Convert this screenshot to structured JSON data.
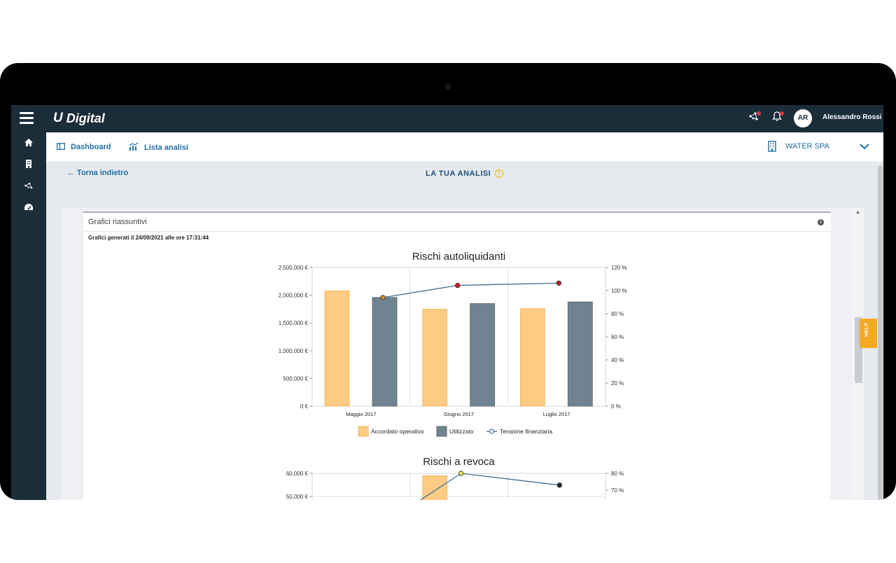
{
  "app": {
    "logo_mark": "U",
    "name": "Digital",
    "user_initials": "AR",
    "user_name": "Alessandro Rossi"
  },
  "icons": {
    "menu": "hamburger-icon",
    "network": "network-icon",
    "bell": "bell-icon",
    "home": "home-icon",
    "building": "building-icon",
    "gauge": "gauge-icon",
    "dashboard": "dashboard-icon",
    "chart": "chart-icon",
    "chevron": "chevron-down-icon"
  },
  "subnav": {
    "dashboard_label": "Dashboard",
    "analysis_list_label": "Lista analisi",
    "company_label": "WATER SPA"
  },
  "page": {
    "back_label": "← Torna indietro",
    "title": "LA TUA ANALISI"
  },
  "card": {
    "title": "Grafici riassuntivi",
    "generated": "Grafici generati il 24/09/2021 alle ore 17:31:44"
  },
  "help_label": "HELP",
  "colors": {
    "topbar": "#1c2d3a",
    "accent": "#1f6fa6",
    "bar_accordato": "#fdcb83",
    "bar_utilizzato": "#6f8390",
    "line": "#3f6e94",
    "help": "#f4a924"
  },
  "chart_data": [
    {
      "type": "bar",
      "title": "Rischi autoliquidanti",
      "categories": [
        "Maggio 2017",
        "Giugno 2017",
        "Luglio 2017"
      ],
      "series": [
        {
          "name": "Accordato operativo",
          "values": [
            2080000,
            1750000,
            1760000
          ]
        },
        {
          "name": "Utilizzato",
          "values": [
            1960000,
            1850000,
            1880000
          ]
        },
        {
          "name": "Tensione finanziaria",
          "type": "line",
          "axis": "right",
          "values": [
            94,
            104.5,
            106.5
          ],
          "marker_colors": [
            "#e08b20",
            "#c8182e",
            "#c8182e"
          ]
        }
      ],
      "y_ticks": [
        "2,500,000 €",
        "2,000,000 €",
        "1,500,000 €",
        "1,000,000 €",
        "500,000 €",
        "0 €"
      ],
      "y2_ticks": [
        "120 %",
        "100 %",
        "80 %",
        "60 %",
        "40 %",
        "20 %",
        "0 %"
      ],
      "ylim": [
        0,
        2500000
      ],
      "y2lim": [
        0,
        120
      ],
      "grid": true,
      "legend": "bottom"
    },
    {
      "type": "bar",
      "title": "Rischi a revoca",
      "categories": [
        "",
        "",
        ""
      ],
      "series": [
        {
          "name": "",
          "values": [
            null,
            59000,
            null
          ]
        },
        {
          "name": "",
          "type": "line",
          "axis": "right",
          "values": [
            null,
            80,
            73
          ],
          "marker_colors": [
            "#e8e050",
            "#e8e050",
            "#1c2d3a"
          ]
        }
      ],
      "y_ticks": [
        "60,000 €",
        "50,000 €"
      ],
      "y2_ticks": [
        "80 %",
        "70 %"
      ],
      "grid": true
    }
  ]
}
